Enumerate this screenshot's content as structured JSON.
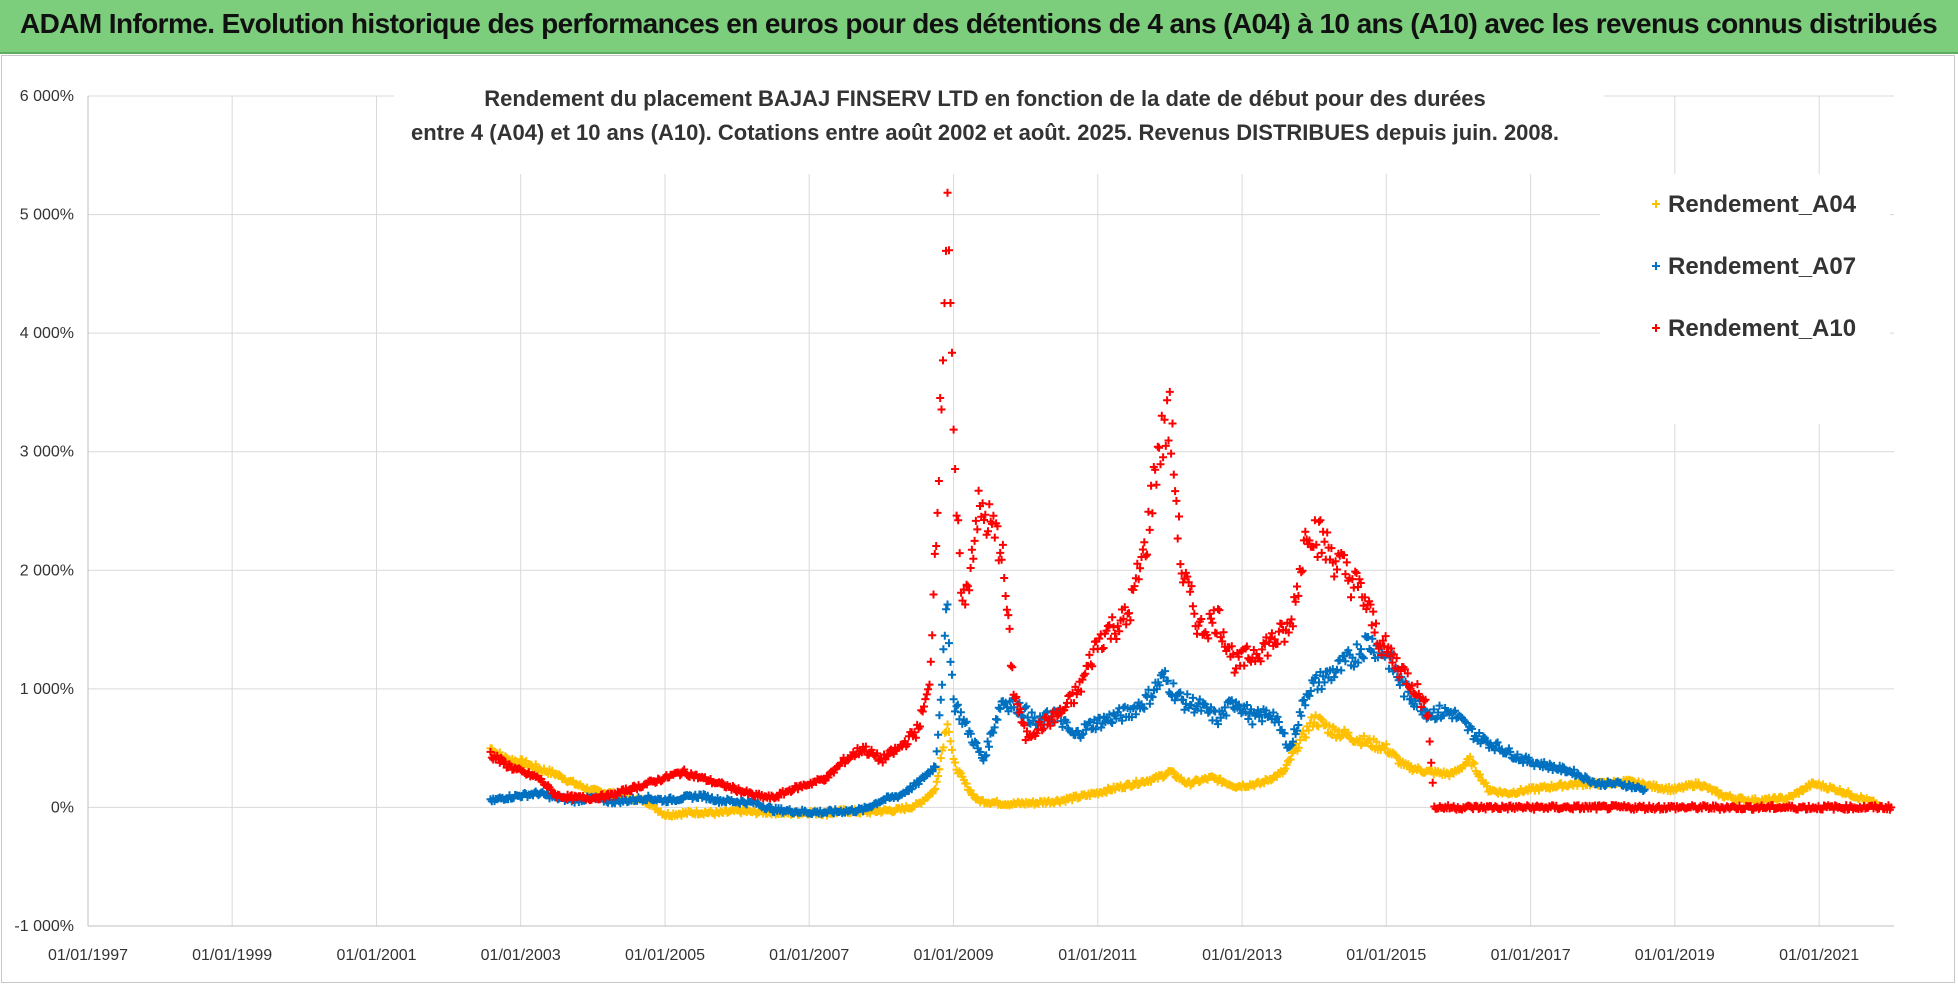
{
  "banner": {
    "title": "ADAM Informe. Evolution historique des performances en euros pour des détentions de 4 ans (A04) à 10 ans (A10) avec les revenus connus distribués"
  },
  "chart_data": {
    "type": "scatter",
    "title_line1": "Rendement du placement BAJAJ FINSERV  LTD en fonction de la date de début pour des durées",
    "title_line2": "entre 4 (A04) et 10 ans (A10).  Cotations entre août 2002 et août. 2025. Revenus DISTRIBUES depuis juin. 2008.",
    "xlabel": "",
    "ylabel": "",
    "x_range": [
      "1997-01-01",
      "2022-01-15"
    ],
    "ylim": [
      -1000,
      6000
    ],
    "x_ticks": [
      "01/01/1997",
      "01/01/1999",
      "01/01/2001",
      "01/01/2003",
      "01/01/2005",
      "01/01/2007",
      "01/01/2009",
      "01/01/2011",
      "01/01/2013",
      "01/01/2015",
      "01/01/2017",
      "01/01/2019",
      "01/01/2021"
    ],
    "y_ticks": [
      "-1 000%",
      "0%",
      "1 000%",
      "2 000%",
      "3 000%",
      "4 000%",
      "5 000%",
      "6 000%"
    ],
    "grid": true,
    "legend_position": "top-right",
    "series": [
      {
        "name": "Rendement_A04",
        "color": "#ffc000",
        "x": [
          "2002-08-01",
          "2002-10-01",
          "2003-01-01",
          "2003-04-01",
          "2003-07-01",
          "2003-10-01",
          "2004-01-01",
          "2004-04-01",
          "2004-07-01",
          "2004-10-01",
          "2005-01-01",
          "2005-04-01",
          "2005-07-01",
          "2005-10-01",
          "2006-01-01",
          "2006-04-01",
          "2006-07-01",
          "2006-10-01",
          "2007-01-01",
          "2007-04-01",
          "2007-07-01",
          "2007-10-01",
          "2008-01-01",
          "2008-04-01",
          "2008-07-01",
          "2008-10-01",
          "2008-12-01",
          "2009-01-01",
          "2009-03-01",
          "2009-05-01",
          "2009-08-01",
          "2009-11-01",
          "2010-03-01",
          "2010-07-01",
          "2010-11-01",
          "2011-03-01",
          "2011-07-01",
          "2011-11-01",
          "2012-01-01",
          "2012-04-01",
          "2012-08-01",
          "2012-12-01",
          "2013-04-01",
          "2013-08-01",
          "2013-10-01",
          "2014-01-01",
          "2014-04-01",
          "2014-07-01",
          "2014-10-01",
          "2015-01-01",
          "2015-04-01",
          "2015-08-01",
          "2015-12-01",
          "2016-03-01",
          "2016-06-01",
          "2016-09-01",
          "2017-01-01",
          "2017-05-01",
          "2017-09-01",
          "2018-01-01",
          "2018-05-01",
          "2018-09-01",
          "2019-01-01",
          "2019-05-01",
          "2019-09-01",
          "2020-01-01",
          "2020-04-01",
          "2020-08-01",
          "2020-12-01",
          "2021-04-01",
          "2021-08-01",
          "2021-11-01"
        ],
        "values": [
          500,
          420,
          380,
          330,
          280,
          200,
          140,
          120,
          80,
          50,
          -60,
          -50,
          -40,
          -50,
          -30,
          -40,
          -40,
          -50,
          -40,
          -50,
          -30,
          -40,
          -30,
          -20,
          20,
          150,
          750,
          380,
          200,
          60,
          40,
          30,
          40,
          60,
          100,
          150,
          200,
          250,
          300,
          200,
          250,
          180,
          200,
          300,
          500,
          750,
          650,
          600,
          550,
          500,
          350,
          300,
          280,
          400,
          150,
          120,
          150,
          180,
          200,
          200,
          220,
          180,
          150,
          200,
          100,
          60,
          60,
          80,
          200,
          150,
          80,
          20
        ]
      },
      {
        "name": "Rendement_A07",
        "color": "#0070c0",
        "x": [
          "2002-08-01",
          "2002-10-01",
          "2003-01-01",
          "2003-04-01",
          "2003-07-01",
          "2003-10-01",
          "2004-01-01",
          "2004-04-01",
          "2004-07-01",
          "2004-10-01",
          "2005-01-01",
          "2005-04-01",
          "2005-07-01",
          "2005-10-01",
          "2006-01-01",
          "2006-04-01",
          "2006-07-01",
          "2006-10-01",
          "2007-01-01",
          "2007-04-01",
          "2007-07-01",
          "2007-10-01",
          "2008-01-01",
          "2008-04-01",
          "2008-07-01",
          "2008-10-01",
          "2008-12-01",
          "2009-01-01",
          "2009-03-01",
          "2009-06-01",
          "2009-09-01",
          "2009-12-01",
          "2010-03-01",
          "2010-06-01",
          "2010-09-01",
          "2010-12-01",
          "2011-03-01",
          "2011-06-01",
          "2011-09-01",
          "2011-12-01",
          "2012-03-01",
          "2012-06-01",
          "2012-09-01",
          "2012-12-01",
          "2013-03-01",
          "2013-06-01",
          "2013-09-01",
          "2013-12-01",
          "2014-03-01",
          "2014-06-01",
          "2014-10-01",
          "2015-01-01",
          "2015-04-01",
          "2015-08-01",
          "2015-12-01",
          "2016-04-01",
          "2016-08-01",
          "2016-12-01",
          "2017-04-01",
          "2017-08-01",
          "2017-12-01",
          "2018-04-01",
          "2018-08-01"
        ],
        "values": [
          50,
          80,
          100,
          120,
          80,
          60,
          80,
          50,
          60,
          80,
          60,
          80,
          100,
          60,
          50,
          40,
          -20,
          -30,
          -40,
          -40,
          -30,
          -20,
          60,
          100,
          200,
          350,
          1700,
          900,
          700,
          400,
          900,
          850,
          700,
          800,
          600,
          700,
          750,
          800,
          900,
          1100,
          900,
          850,
          750,
          900,
          750,
          800,
          500,
          1000,
          1100,
          1200,
          1400,
          1300,
          1000,
          800,
          800,
          600,
          500,
          400,
          350,
          300,
          200,
          200,
          150
        ]
      },
      {
        "name": "Rendement_A10",
        "color": "#ff0000",
        "x": [
          "2002-08-01",
          "2002-10-01",
          "2003-01-01",
          "2003-04-01",
          "2003-07-01",
          "2003-10-01",
          "2004-01-01",
          "2004-04-01",
          "2004-07-01",
          "2004-10-01",
          "2005-01-01",
          "2005-04-01",
          "2005-07-01",
          "2005-10-01",
          "2006-01-01",
          "2006-04-01",
          "2006-07-01",
          "2006-10-01",
          "2007-01-01",
          "2007-04-01",
          "2007-07-01",
          "2007-10-01",
          "2008-01-01",
          "2008-04-01",
          "2008-07-01",
          "2008-09-01",
          "2008-11-01",
          "2008-12-01",
          "2009-01-01",
          "2009-02-01",
          "2009-03-01",
          "2009-05-01",
          "2009-07-01",
          "2009-09-01",
          "2009-11-01",
          "2010-01-01",
          "2010-04-01",
          "2010-07-01",
          "2010-10-01",
          "2011-01-01",
          "2011-03-01",
          "2011-06-01",
          "2011-09-01",
          "2011-11-01",
          "2012-01-01",
          "2012-03-01",
          "2012-06-01",
          "2012-09-01",
          "2012-12-01",
          "2013-03-01",
          "2013-06-01",
          "2013-09-01",
          "2013-12-01",
          "2014-03-01",
          "2014-06-01",
          "2014-09-01",
          "2014-12-01",
          "2015-03-01",
          "2015-06-01",
          "2015-08-01",
          "2015-09-01",
          "2016-06-01",
          "2017-06-01",
          "2018-06-01",
          "2019-06-01",
          "2020-06-01",
          "2021-06-01",
          "2022-01-01"
        ],
        "values": [
          450,
          380,
          300,
          250,
          100,
          80,
          80,
          100,
          150,
          200,
          250,
          300,
          250,
          200,
          150,
          100,
          80,
          150,
          200,
          250,
          400,
          500,
          400,
          500,
          650,
          1000,
          3500,
          5300,
          3000,
          2000,
          1700,
          2500,
          2400,
          2200,
          1000,
          600,
          700,
          800,
          1000,
          1400,
          1500,
          1600,
          2200,
          3000,
          3300,
          2000,
          1500,
          1600,
          1200,
          1300,
          1400,
          1500,
          2400,
          2200,
          2000,
          1800,
          1400,
          1200,
          1000,
          800,
          0,
          0,
          0,
          0,
          0,
          0,
          0,
          0
        ]
      }
    ]
  }
}
